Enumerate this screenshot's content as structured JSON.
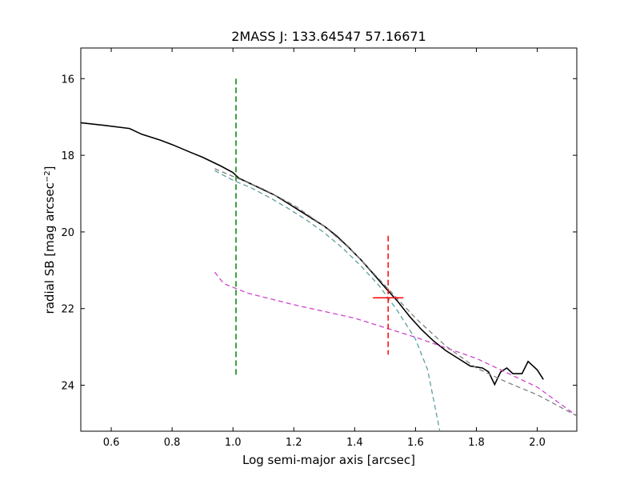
{
  "chart_data": {
    "type": "line",
    "title": "2MASS J: 133.64547 57.16671",
    "xlabel": "Log semi-major axis [arcsec]",
    "ylabel_main": "radial SB [mag arcsec",
    "ylabel_sup": "−2",
    "ylabel_close": "]",
    "xlim": [
      0.5,
      2.13
    ],
    "ylim": [
      25.2,
      15.2
    ],
    "y_inverted": true,
    "grid": false,
    "x_ticks": [
      {
        "value": 0.6,
        "label": "0.6"
      },
      {
        "value": 0.8,
        "label": "0.8"
      },
      {
        "value": 1.0,
        "label": "1.0"
      },
      {
        "value": 1.2,
        "label": "1.2"
      },
      {
        "value": 1.4,
        "label": "1.4"
      },
      {
        "value": 1.6,
        "label": "1.6"
      },
      {
        "value": 1.8,
        "label": "1.8"
      },
      {
        "value": 2.0,
        "label": "2.0"
      }
    ],
    "y_ticks": [
      {
        "value": 16,
        "label": "16"
      },
      {
        "value": 18,
        "label": "18"
      },
      {
        "value": 20,
        "label": "20"
      },
      {
        "value": 22,
        "label": "22"
      },
      {
        "value": 24,
        "label": "24"
      }
    ],
    "series": [
      {
        "style": "solid",
        "color": "#000000",
        "points": [
          [
            0.5,
            17.15
          ],
          [
            0.58,
            17.22
          ],
          [
            0.66,
            17.3
          ],
          [
            0.7,
            17.45
          ],
          [
            0.76,
            17.6
          ],
          [
            0.8,
            17.72
          ],
          [
            0.86,
            17.92
          ],
          [
            0.9,
            18.05
          ],
          [
            0.96,
            18.28
          ],
          [
            1.0,
            18.45
          ],
          [
            1.02,
            18.6
          ],
          [
            1.06,
            18.75
          ],
          [
            1.1,
            18.9
          ],
          [
            1.14,
            19.05
          ],
          [
            1.18,
            19.25
          ],
          [
            1.22,
            19.45
          ],
          [
            1.26,
            19.65
          ],
          [
            1.3,
            19.85
          ],
          [
            1.34,
            20.1
          ],
          [
            1.38,
            20.4
          ],
          [
            1.42,
            20.72
          ],
          [
            1.46,
            21.08
          ],
          [
            1.5,
            21.45
          ],
          [
            1.54,
            21.8
          ],
          [
            1.58,
            22.2
          ],
          [
            1.62,
            22.55
          ],
          [
            1.66,
            22.85
          ],
          [
            1.7,
            23.1
          ],
          [
            1.74,
            23.3
          ],
          [
            1.78,
            23.5
          ],
          [
            1.82,
            23.55
          ],
          [
            1.84,
            23.65
          ],
          [
            1.86,
            23.98
          ],
          [
            1.88,
            23.65
          ],
          [
            1.9,
            23.55
          ],
          [
            1.92,
            23.7
          ],
          [
            1.95,
            23.7
          ],
          [
            1.97,
            23.38
          ],
          [
            2.0,
            23.6
          ],
          [
            2.02,
            23.85
          ]
        ]
      },
      {
        "style": "dashed",
        "color": "#5f9ea0",
        "points": [
          [
            0.94,
            18.4
          ],
          [
            1.0,
            18.65
          ],
          [
            1.06,
            18.85
          ],
          [
            1.12,
            19.1
          ],
          [
            1.18,
            19.38
          ],
          [
            1.24,
            19.68
          ],
          [
            1.3,
            20.02
          ],
          [
            1.36,
            20.42
          ],
          [
            1.42,
            20.88
          ],
          [
            1.48,
            21.4
          ],
          [
            1.54,
            22.05
          ],
          [
            1.6,
            22.8
          ],
          [
            1.64,
            23.6
          ],
          [
            1.68,
            25.2
          ]
        ]
      },
      {
        "style": "dashed",
        "color": "#cc44cc",
        "points": [
          [
            0.94,
            21.05
          ],
          [
            0.97,
            21.35
          ],
          [
            1.05,
            21.6
          ],
          [
            1.2,
            21.9
          ],
          [
            1.4,
            22.25
          ],
          [
            1.6,
            22.75
          ],
          [
            1.8,
            23.3
          ],
          [
            2.0,
            24.05
          ],
          [
            2.13,
            24.8
          ]
        ]
      },
      {
        "style": "dashed",
        "color": "#808080",
        "points": [
          [
            0.94,
            18.35
          ],
          [
            1.0,
            18.55
          ],
          [
            1.1,
            18.88
          ],
          [
            1.2,
            19.3
          ],
          [
            1.3,
            19.85
          ],
          [
            1.4,
            20.55
          ],
          [
            1.5,
            21.4
          ],
          [
            1.6,
            22.25
          ],
          [
            1.7,
            22.98
          ],
          [
            1.8,
            23.55
          ],
          [
            1.9,
            23.92
          ],
          [
            2.0,
            24.25
          ],
          [
            2.13,
            24.8
          ]
        ]
      }
    ],
    "markers": [
      {
        "type": "vline",
        "color": "#008000",
        "x": 1.01,
        "y_from": 16.0,
        "y_to": 23.8
      },
      {
        "type": "vline",
        "color": "#ff0000",
        "x": 1.51,
        "y_from": 20.1,
        "y_to": 23.2
      },
      {
        "type": "hline",
        "color": "#ff0000",
        "y": 21.72,
        "x_from": 1.46,
        "x_to": 1.56
      }
    ]
  }
}
